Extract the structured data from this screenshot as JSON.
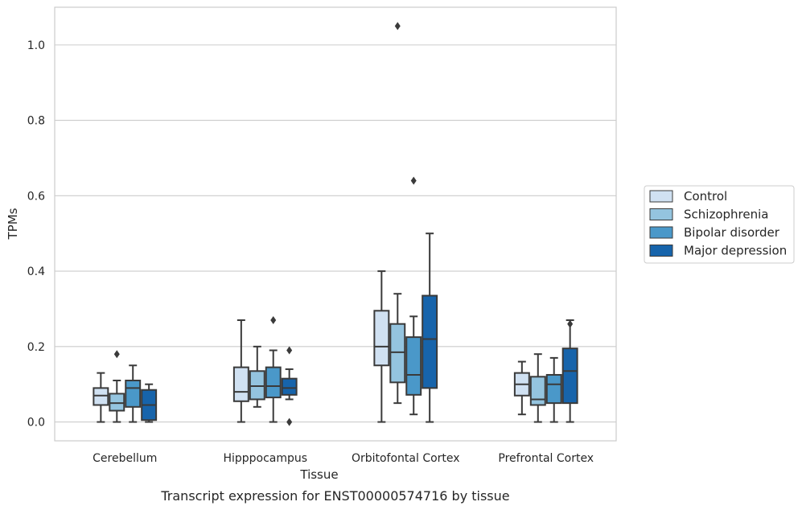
{
  "chart_data": {
    "type": "box",
    "title": "",
    "caption": "Transcript expression for ENST00000574716 by tissue",
    "xlabel": "Tissue",
    "ylabel": "TPMs",
    "ylim": [
      -0.05,
      1.1
    ],
    "yticks": [
      "0.0",
      "0.2",
      "0.4",
      "0.6",
      "0.8",
      "1.0"
    ],
    "grid": true,
    "legend_position": "right",
    "categories": [
      "Cerebellum",
      "Hipppocampus",
      "Orbitofontal Cortex",
      "Prefrontal Cortex"
    ],
    "series": [
      {
        "name": "Control",
        "color": "#d0e1f2",
        "boxes": [
          {
            "whislo": 0.0,
            "q1": 0.045,
            "med": 0.07,
            "q3": 0.09,
            "whishi": 0.13,
            "fliers": []
          },
          {
            "whislo": 0.0,
            "q1": 0.055,
            "med": 0.08,
            "q3": 0.145,
            "whishi": 0.27,
            "fliers": []
          },
          {
            "whislo": 0.0,
            "q1": 0.15,
            "med": 0.2,
            "q3": 0.295,
            "whishi": 0.4,
            "fliers": []
          },
          {
            "whislo": 0.02,
            "q1": 0.07,
            "med": 0.1,
            "q3": 0.13,
            "whishi": 0.16,
            "fliers": []
          }
        ]
      },
      {
        "name": "Schizophrenia",
        "color": "#94c4df",
        "boxes": [
          {
            "whislo": 0.0,
            "q1": 0.03,
            "med": 0.05,
            "q3": 0.075,
            "whishi": 0.11,
            "fliers": [
              0.18
            ]
          },
          {
            "whislo": 0.04,
            "q1": 0.06,
            "med": 0.095,
            "q3": 0.135,
            "whishi": 0.2,
            "fliers": []
          },
          {
            "whislo": 0.05,
            "q1": 0.105,
            "med": 0.185,
            "q3": 0.26,
            "whishi": 0.34,
            "fliers": [
              1.05
            ]
          },
          {
            "whislo": 0.0,
            "q1": 0.045,
            "med": 0.06,
            "q3": 0.12,
            "whishi": 0.18,
            "fliers": []
          }
        ]
      },
      {
        "name": "Bipolar disorder",
        "color": "#4a98c9",
        "boxes": [
          {
            "whislo": 0.0,
            "q1": 0.04,
            "med": 0.09,
            "q3": 0.11,
            "whishi": 0.15,
            "fliers": []
          },
          {
            "whislo": 0.0,
            "q1": 0.065,
            "med": 0.095,
            "q3": 0.145,
            "whishi": 0.19,
            "fliers": [
              0.27
            ]
          },
          {
            "whislo": 0.02,
            "q1": 0.072,
            "med": 0.125,
            "q3": 0.225,
            "whishi": 0.28,
            "fliers": [
              0.64
            ]
          },
          {
            "whislo": 0.0,
            "q1": 0.05,
            "med": 0.1,
            "q3": 0.125,
            "whishi": 0.17,
            "fliers": []
          }
        ]
      },
      {
        "name": "Major depression",
        "color": "#1764ab",
        "boxes": [
          {
            "whislo": 0.0,
            "q1": 0.005,
            "med": 0.045,
            "q3": 0.085,
            "whishi": 0.1,
            "fliers": []
          },
          {
            "whislo": 0.06,
            "q1": 0.072,
            "med": 0.09,
            "q3": 0.115,
            "whishi": 0.14,
            "fliers": [
              0.19,
              0.0
            ]
          },
          {
            "whislo": 0.0,
            "q1": 0.09,
            "med": 0.22,
            "q3": 0.335,
            "whishi": 0.5,
            "fliers": []
          },
          {
            "whislo": 0.0,
            "q1": 0.05,
            "med": 0.135,
            "q3": 0.195,
            "whishi": 0.27,
            "fliers": [
              0.26
            ]
          }
        ]
      }
    ]
  }
}
